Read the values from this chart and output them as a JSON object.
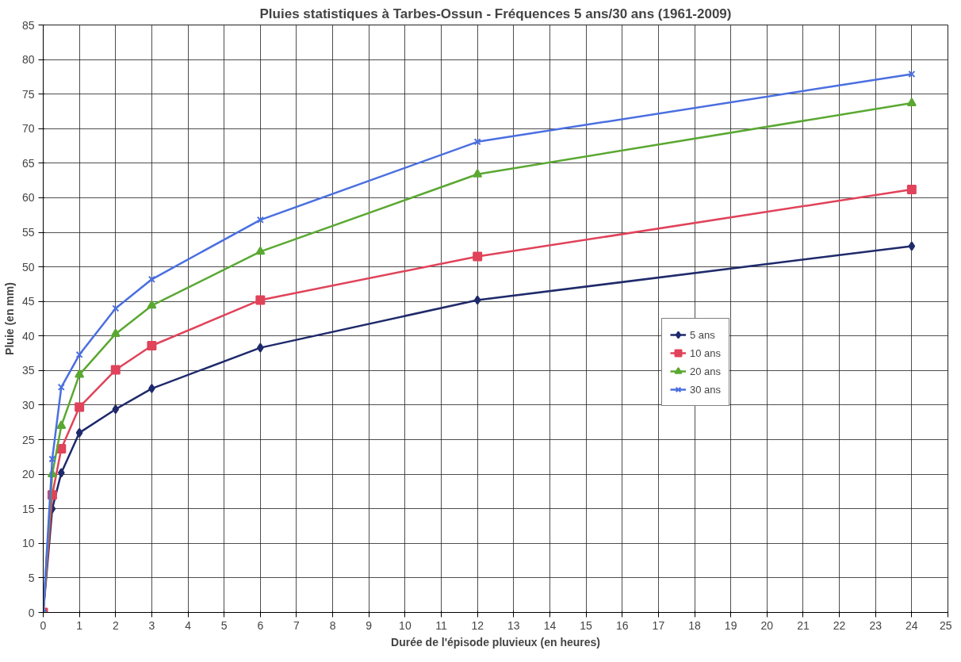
{
  "chart_data": {
    "type": "line",
    "title": "Pluies statistiques à Tarbes-Ossun - Fréquences 5 ans/30 ans (1961-2009)",
    "xlabel": "Durée de l'épisode pluvieux (en heures)",
    "ylabel": "Pluie (en mm)",
    "x": [
      0,
      0.25,
      0.5,
      1,
      2,
      3,
      6,
      12,
      24
    ],
    "series": [
      {
        "name": "5 ans",
        "color": "#1f2a6b",
        "marker": "diamond",
        "values": [
          0,
          15,
          20.2,
          26,
          29.4,
          32.4,
          38.3,
          45.2,
          53
        ]
      },
      {
        "name": "10 ans",
        "color": "#e0435a",
        "marker": "square",
        "values": [
          0,
          17,
          23.7,
          29.7,
          35.1,
          38.6,
          45.2,
          51.5,
          61.2
        ]
      },
      {
        "name": "20 ans",
        "color": "#5aa832",
        "marker": "triangle",
        "values": [
          0,
          20,
          27,
          34.4,
          40.3,
          44.4,
          52.2,
          63.4,
          73.7
        ]
      },
      {
        "name": "30 ans",
        "color": "#4a6fe0",
        "marker": "cross",
        "values": [
          0,
          22.2,
          32.6,
          37.3,
          44,
          48.2,
          56.8,
          68.1,
          77.9
        ]
      }
    ],
    "xlim": [
      0,
      25
    ],
    "ylim": [
      0,
      85
    ],
    "xticks": [
      0,
      1,
      2,
      3,
      4,
      5,
      6,
      7,
      8,
      9,
      10,
      11,
      12,
      13,
      14,
      15,
      16,
      17,
      18,
      19,
      20,
      21,
      22,
      23,
      24,
      25
    ],
    "yticks": [
      0,
      5,
      10,
      15,
      20,
      25,
      30,
      35,
      40,
      45,
      50,
      55,
      60,
      65,
      70,
      75,
      80,
      85
    ],
    "grid": true,
    "legend": "right",
    "line_style": "solid"
  }
}
